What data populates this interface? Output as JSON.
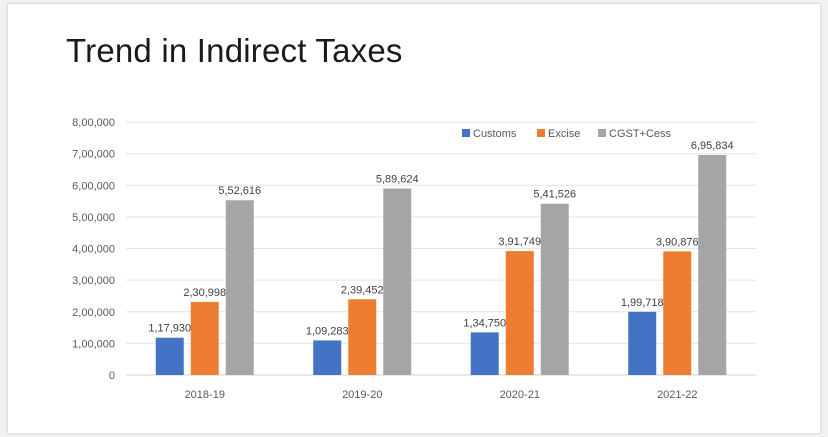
{
  "slide": {
    "title": "Trend in Indirect Taxes"
  },
  "chart_data": {
    "type": "bar",
    "title": "",
    "xlabel": "",
    "ylabel": "",
    "categories": [
      "2018-19",
      "2019-20",
      "2020-21",
      "2021-22"
    ],
    "series": [
      {
        "name": "Customs",
        "color": "#4472c4",
        "values": [
          117930,
          109283,
          134750,
          199718
        ],
        "labels": [
          "1,17,930",
          "1,09,283",
          "1,34,750",
          "1,99,718"
        ]
      },
      {
        "name": "Excise",
        "color": "#ed7d31",
        "values": [
          230998,
          239452,
          391749,
          390876
        ],
        "labels": [
          "2,30,998",
          "2,39,452",
          "3,91,749",
          "3,90,876"
        ]
      },
      {
        "name": "CGST+Cess",
        "color": "#a5a5a5",
        "values": [
          552616,
          589624,
          541526,
          695834
        ],
        "labels": [
          "5,52,616",
          "5,89,624",
          "5,41,526",
          "6,95,834"
        ]
      }
    ],
    "ylim": [
      0,
      800000
    ],
    "yticks": [
      0,
      100000,
      200000,
      300000,
      400000,
      500000,
      600000,
      700000,
      800000
    ],
    "ytick_labels": [
      "0",
      "1,00,000",
      "2,00,000",
      "3,00,000",
      "4,00,000",
      "5,00,000",
      "6,00,000",
      "7,00,000",
      "8,00,000"
    ],
    "grid": true,
    "legend_position": "top-right",
    "data_labels": true
  }
}
